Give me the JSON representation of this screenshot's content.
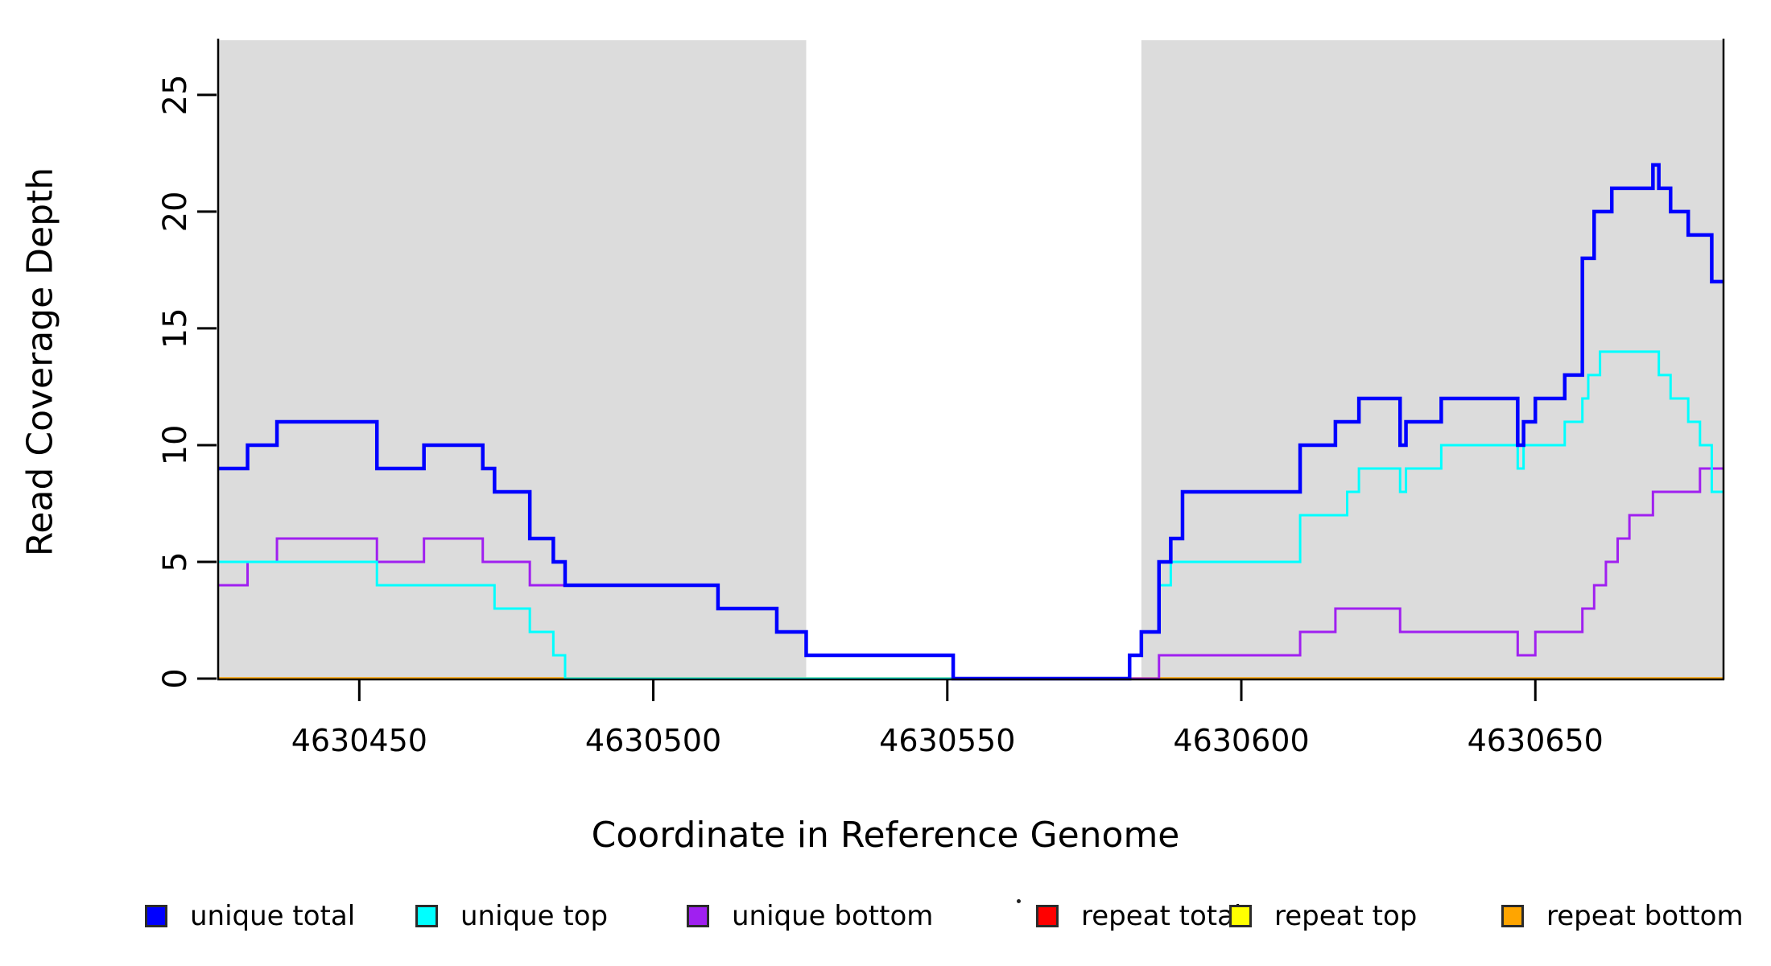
{
  "figure": {
    "xlabel": "Coordinate in Reference Genome",
    "ylabel": "Read Coverage Depth"
  },
  "chart_data": {
    "type": "line",
    "subtype": "step-coverage",
    "title": "",
    "xlabel": "Coordinate in Reference Genome",
    "ylabel": "Read Coverage Depth",
    "xlim": [
      4630426,
      4630682
    ],
    "ylim": [
      0,
      27.34
    ],
    "x_ticks": [
      4630450,
      4630500,
      4630550,
      4630600,
      4630650
    ],
    "y_ticks": [
      0,
      5,
      10,
      15,
      20,
      25
    ],
    "grid": false,
    "legend_position": "bottom",
    "shaded_regions": [
      {
        "from": 4630426,
        "to": 4630526,
        "color": "#DCDCDC"
      },
      {
        "from": 4630583,
        "to": 4630682,
        "color": "#DCDCDC"
      }
    ],
    "series": [
      {
        "name": "repeat total",
        "color": "#FF0000",
        "width": 3,
        "steps": [
          [
            4630426,
            0
          ]
        ]
      },
      {
        "name": "repeat top",
        "color": "#FFFF00",
        "width": 3,
        "steps": [
          [
            4630426,
            0
          ]
        ]
      },
      {
        "name": "repeat bottom",
        "color": "#FFA500",
        "width": 3.5,
        "steps": [
          [
            4630426,
            0
          ]
        ]
      },
      {
        "name": "unique bottom",
        "color": "#A020F0",
        "width": 3,
        "steps": [
          [
            4630426,
            4
          ],
          [
            4630431,
            5
          ],
          [
            4630436,
            6
          ],
          [
            4630453,
            5
          ],
          [
            4630461,
            6
          ],
          [
            4630471,
            5
          ],
          [
            4630479,
            4
          ],
          [
            4630511,
            3
          ],
          [
            4630521,
            2
          ],
          [
            4630526,
            1
          ],
          [
            4630551,
            0
          ],
          [
            4630586,
            1
          ],
          [
            4630610,
            2
          ],
          [
            4630616,
            3
          ],
          [
            4630627,
            2
          ],
          [
            4630647,
            1
          ],
          [
            4630650,
            2
          ],
          [
            4630658,
            3
          ],
          [
            4630660,
            4
          ],
          [
            4630662,
            5
          ],
          [
            4630664,
            6
          ],
          [
            4630666,
            7
          ],
          [
            4630670,
            8
          ],
          [
            4630678,
            9
          ]
        ]
      },
      {
        "name": "unique top",
        "color": "#00FFFF",
        "width": 3,
        "steps": [
          [
            4630426,
            5
          ],
          [
            4630453,
            4
          ],
          [
            4630473,
            3
          ],
          [
            4630479,
            2
          ],
          [
            4630483,
            1
          ],
          [
            4630485,
            0
          ],
          [
            4630581,
            1
          ],
          [
            4630583,
            2
          ],
          [
            4630586,
            4
          ],
          [
            4630588,
            5
          ],
          [
            4630610,
            7
          ],
          [
            4630618,
            8
          ],
          [
            4630620,
            9
          ],
          [
            4630627,
            8
          ],
          [
            4630628,
            9
          ],
          [
            4630634,
            10
          ],
          [
            4630647,
            9
          ],
          [
            4630648,
            10
          ],
          [
            4630655,
            11
          ],
          [
            4630658,
            12
          ],
          [
            4630659,
            13
          ],
          [
            4630661,
            14
          ],
          [
            4630671,
            13
          ],
          [
            4630673,
            12
          ],
          [
            4630676,
            11
          ],
          [
            4630678,
            10
          ],
          [
            4630680,
            8
          ]
        ]
      },
      {
        "name": "unique total",
        "color": "#0000FF",
        "width": 4.5,
        "steps": [
          [
            4630426,
            9
          ],
          [
            4630431,
            10
          ],
          [
            4630436,
            11
          ],
          [
            4630453,
            9
          ],
          [
            4630461,
            10
          ],
          [
            4630471,
            9
          ],
          [
            4630473,
            8
          ],
          [
            4630479,
            6
          ],
          [
            4630483,
            5
          ],
          [
            4630485,
            4
          ],
          [
            4630511,
            3
          ],
          [
            4630521,
            2
          ],
          [
            4630526,
            1
          ],
          [
            4630551,
            0
          ],
          [
            4630581,
            1
          ],
          [
            4630583,
            2
          ],
          [
            4630586,
            5
          ],
          [
            4630588,
            6
          ],
          [
            4630590,
            8
          ],
          [
            4630610,
            10
          ],
          [
            4630616,
            11
          ],
          [
            4630620,
            12
          ],
          [
            4630627,
            10
          ],
          [
            4630628,
            11
          ],
          [
            4630634,
            12
          ],
          [
            4630647,
            10
          ],
          [
            4630648,
            11
          ],
          [
            4630650,
            12
          ],
          [
            4630655,
            13
          ],
          [
            4630658,
            18
          ],
          [
            4630660,
            20
          ],
          [
            4630663,
            21
          ],
          [
            4630670,
            22
          ],
          [
            4630671,
            21
          ],
          [
            4630673,
            20
          ],
          [
            4630676,
            19
          ],
          [
            4630680,
            17
          ]
        ]
      }
    ]
  },
  "legend": {
    "items": [
      {
        "label": "unique total",
        "color": "#0000FF"
      },
      {
        "label": "unique top",
        "color": "#00FFFF"
      },
      {
        "label": "unique bottom",
        "color": "#A020F0"
      },
      {
        "label": "repeat total",
        "color": "#FF0000"
      },
      {
        "label": "repeat top",
        "color": "#FFFF00"
      },
      {
        "label": "repeat bottom",
        "color": "#FFA500"
      }
    ]
  }
}
